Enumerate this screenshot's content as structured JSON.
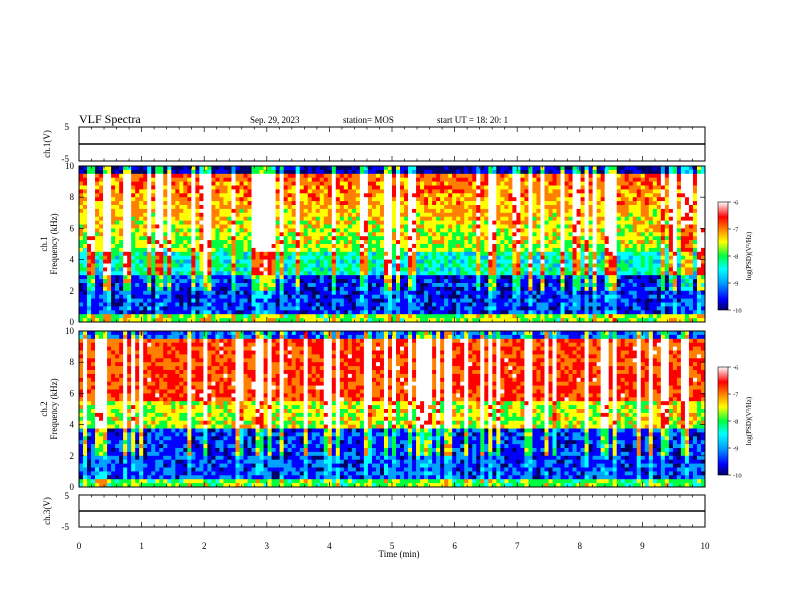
{
  "header": {
    "title": "VLF Spectra",
    "date": "Sep. 29, 2023",
    "station": "station= MOS",
    "start": "start  UT =   18: 20: 1"
  },
  "chart_data": [
    {
      "type": "line",
      "panel": "ch1-waveform",
      "ylabel": "ch.1(V)",
      "ylim": [
        -5,
        5
      ],
      "yticks": [
        "5",
        "-5"
      ],
      "x": [
        0,
        10
      ],
      "values": [
        0,
        0
      ],
      "color": "#000000"
    },
    {
      "type": "heatmap",
      "panel": "ch1-spectrogram",
      "ylabel_top": "ch.1",
      "ylabel": "Frequency (kHz)",
      "ylim": [
        0,
        10
      ],
      "yticks": [
        "0",
        "2",
        "4",
        "6",
        "8",
        "10"
      ],
      "colorbar_label": "log(PSD)(V²/Hz)",
      "colorbar_ticks": [
        "-6",
        "-7",
        "-8",
        "-9",
        "-10"
      ],
      "colorbar_range": [
        -10,
        -6
      ]
    },
    {
      "type": "heatmap",
      "panel": "ch2-spectrogram",
      "ylabel_top": "ch.2",
      "ylabel": "Frequency (kHz)",
      "ylim": [
        0,
        10
      ],
      "yticks": [
        "0",
        "2",
        "4",
        "6",
        "8",
        "10"
      ],
      "colorbar_label": "log(PSD)(V²/Hz)",
      "colorbar_ticks": [
        "-6",
        "-7",
        "-8",
        "-9",
        "-10"
      ],
      "colorbar_range": [
        -10,
        -6
      ]
    },
    {
      "type": "line",
      "panel": "ch3-waveform",
      "ylabel": "ch.3(V)",
      "ylim": [
        -5,
        5
      ],
      "yticks": [
        "5",
        "-5"
      ],
      "x": [
        0,
        10
      ],
      "values": [
        0,
        0
      ],
      "color": "#000000"
    }
  ],
  "xaxis": {
    "label": "Time  (min)",
    "range": [
      0,
      10
    ],
    "ticks": [
      "0",
      "1",
      "2",
      "3",
      "4",
      "5",
      "6",
      "7",
      "8",
      "9",
      "10"
    ]
  },
  "colormap": [
    "#000066",
    "#0000ff",
    "#00a0ff",
    "#00ffff",
    "#00ff40",
    "#ffff00",
    "#ff8000",
    "#ff0000",
    "#ffffff"
  ]
}
